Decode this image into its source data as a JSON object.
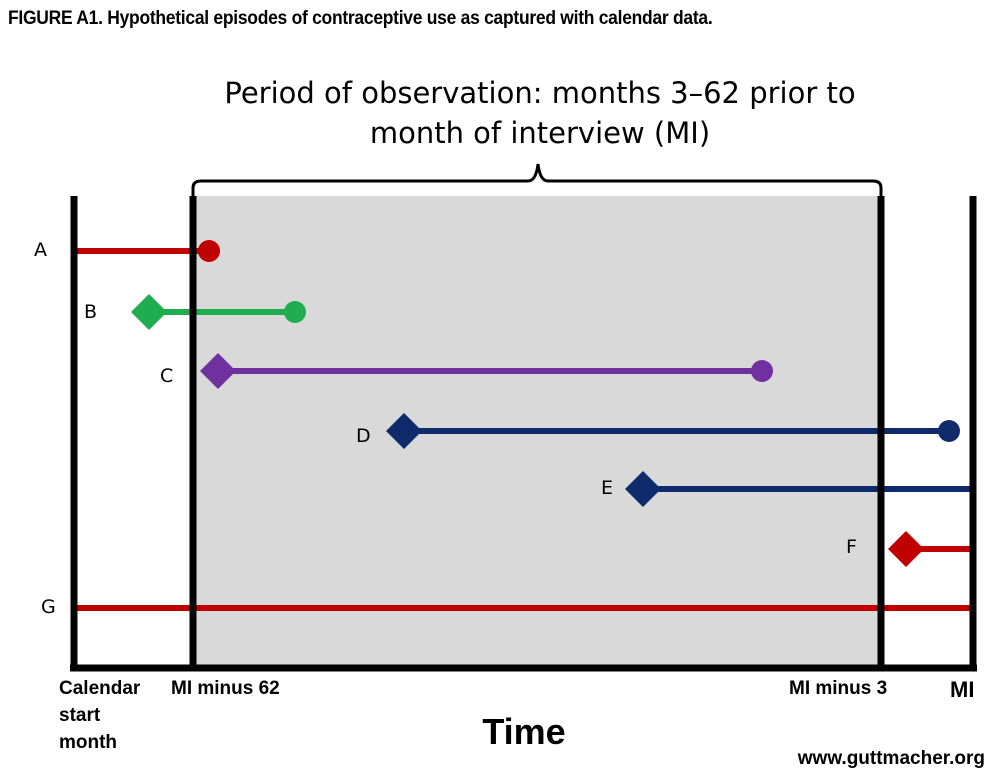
{
  "title": "FIGURE A1. Hypothetical episodes of contraceptive use as captured with calendar data.",
  "observation": {
    "line1": "Period of observation: months 3–62 prior to",
    "line2": "month of interview (MI)"
  },
  "axis": {
    "time_label": "Time",
    "calendar_start": [
      "Calendar",
      "start",
      "month"
    ],
    "mi_minus_62": "MI minus 62",
    "mi_minus_3": "MI minus 3",
    "mi": "MI"
  },
  "episodes": [
    {
      "label": "A",
      "color": "#c00000",
      "start_marker": "none",
      "end_marker": "circle"
    },
    {
      "label": "B",
      "color": "#1fad4f",
      "start_marker": "diamond",
      "end_marker": "circle"
    },
    {
      "label": "C",
      "color": "#7030a0",
      "start_marker": "diamond",
      "end_marker": "circle"
    },
    {
      "label": "D",
      "color": "#0f2b6b",
      "start_marker": "diamond",
      "end_marker": "circle"
    },
    {
      "label": "E",
      "color": "#0f2b6b",
      "start_marker": "diamond",
      "end_marker": "none"
    },
    {
      "label": "F",
      "color": "#c00000",
      "start_marker": "diamond",
      "end_marker": "none"
    },
    {
      "label": "G",
      "color": "#c00000",
      "start_marker": "none",
      "end_marker": "none"
    }
  ],
  "colors": {
    "observation_shading": "#d9d9d9",
    "axis": "#000000"
  },
  "credit": "www.guttmacher.org"
}
